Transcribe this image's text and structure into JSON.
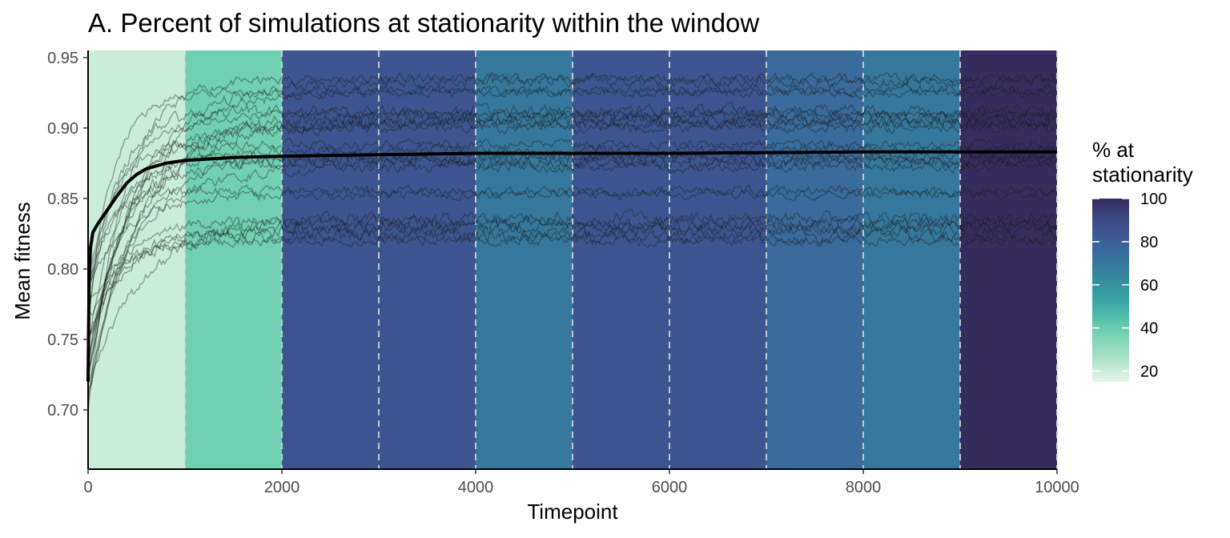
{
  "chart_data": {
    "type": "line",
    "title": "A. Percent of simulations at stationarity within the window",
    "xlabel": "Timepoint",
    "ylabel": "Mean fitness",
    "xlim": [
      0,
      10000
    ],
    "ylim": [
      0.658,
      0.955
    ],
    "x_ticks": [
      0,
      2000,
      4000,
      6000,
      8000,
      10000
    ],
    "y_ticks": [
      0.7,
      0.75,
      0.8,
      0.85,
      0.9,
      0.95
    ],
    "x_tick_labels": [
      "0",
      "2000",
      "4000",
      "6000",
      "8000",
      "10000"
    ],
    "y_tick_labels": [
      "0.70",
      "0.75",
      "0.80",
      "0.85",
      "0.90",
      "0.95"
    ],
    "grid": false,
    "window_boundaries": [
      1000,
      2000,
      3000,
      4000,
      5000,
      6000,
      7000,
      8000,
      9000,
      10000
    ],
    "windows": [
      {
        "start": 0,
        "end": 1000,
        "pct_stationary": 20
      },
      {
        "start": 1000,
        "end": 2000,
        "pct_stationary": 38
      },
      {
        "start": 2000,
        "end": 3000,
        "pct_stationary": 85
      },
      {
        "start": 3000,
        "end": 4000,
        "pct_stationary": 85
      },
      {
        "start": 4000,
        "end": 5000,
        "pct_stationary": 70
      },
      {
        "start": 5000,
        "end": 6000,
        "pct_stationary": 85
      },
      {
        "start": 6000,
        "end": 7000,
        "pct_stationary": 85
      },
      {
        "start": 7000,
        "end": 8000,
        "pct_stationary": 75
      },
      {
        "start": 8000,
        "end": 9000,
        "pct_stationary": 70
      },
      {
        "start": 9000,
        "end": 10000,
        "pct_stationary": 100
      }
    ],
    "simulation_plateaus": [
      0.935,
      0.933,
      0.927,
      0.925,
      0.912,
      0.91,
      0.907,
      0.905,
      0.903,
      0.9,
      0.888,
      0.884,
      0.88,
      0.878,
      0.875,
      0.872,
      0.855,
      0.853,
      0.836,
      0.833,
      0.83,
      0.827,
      0.823,
      0.82
    ],
    "mean_series": {
      "x": [
        0,
        10,
        25,
        50,
        100,
        200,
        300,
        400,
        500,
        600,
        800,
        1000,
        1500,
        2000,
        3000,
        4000,
        6000,
        8000,
        10000
      ],
      "y": [
        0.72,
        0.79,
        0.815,
        0.826,
        0.832,
        0.842,
        0.852,
        0.861,
        0.867,
        0.871,
        0.875,
        0.877,
        0.879,
        0.88,
        0.881,
        0.882,
        0.882,
        0.883,
        0.883
      ]
    },
    "legend": {
      "title": "% at stationarity",
      "title_lines": [
        "% at",
        "stationarity"
      ],
      "position": "right",
      "range": [
        15,
        100
      ],
      "breaks": [
        20,
        40,
        60,
        80,
        100
      ],
      "break_labels": [
        "20",
        "40",
        "60",
        "80",
        "100"
      ]
    },
    "colors": {
      "scale": [
        "#e4f5ea",
        "#a6e1c4",
        "#6cceb0",
        "#3aa8a3",
        "#33889f",
        "#39699c",
        "#3d4f8c",
        "#362d5e"
      ],
      "series_line": "#1a1a1a",
      "mean_line": "#000000",
      "window_divider": "#d9d9d9"
    }
  }
}
